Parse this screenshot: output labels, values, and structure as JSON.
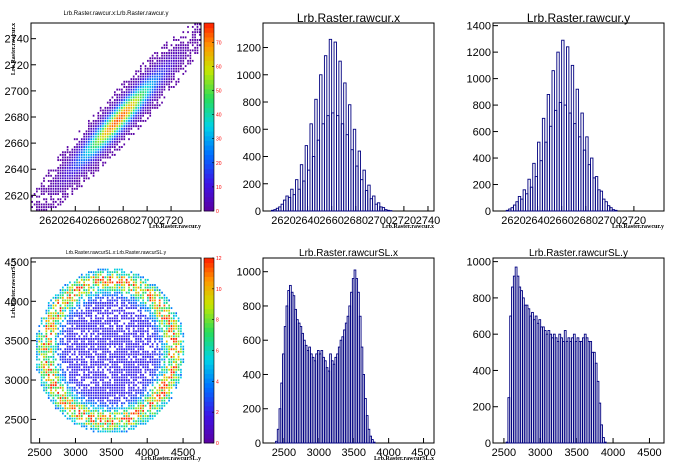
{
  "chart_data": [
    {
      "type": "heatmap",
      "title": "Lrb.Raster.rawcur.x:Lrb.Raster.rawcur.y",
      "xlabel": "Lrb.Raster.rawcur.y",
      "ylabel": "Lrb.Raster.rawcur.x",
      "xlim": [
        2603,
        2745
      ],
      "ylim": [
        2608,
        2752
      ],
      "xticks": [
        2620,
        2640,
        2660,
        2680,
        2700,
        2720
      ],
      "yticks": [
        2620,
        2640,
        2660,
        2680,
        2700,
        2720,
        2740
      ],
      "zlim": [
        0,
        78
      ],
      "zticks": [
        0,
        10,
        20,
        30,
        40,
        50,
        60,
        70
      ],
      "distribution": {
        "shape": "ellipse",
        "cx": 2676,
        "cy": 2678,
        "sx": 21,
        "sy": 21,
        "rho": 0.95,
        "peak": 75
      }
    },
    {
      "type": "bar",
      "title": "Lrb.Raster.rawcur.x",
      "xlabel": "Lrb.Raster.rawcur.x",
      "xlim": [
        2603,
        2745
      ],
      "ylim": [
        0,
        1380
      ],
      "xticks": [
        2620,
        2640,
        2660,
        2680,
        2700,
        2720,
        2740
      ],
      "yticks": [
        0,
        200,
        400,
        600,
        800,
        1000,
        1200
      ],
      "yticklabels": [
        "0",
        "200",
        "400",
        "600",
        "800",
        "1000",
        "1200"
      ],
      "bins": {
        "start": 2610,
        "width": 2
      },
      "values": [
        5,
        10,
        20,
        30,
        50,
        80,
        110,
        100,
        160,
        120,
        230,
        160,
        340,
        220,
        480,
        300,
        640,
        400,
        820,
        520,
        1000,
        640,
        1140,
        700,
        1260,
        720,
        1240,
        700,
        1100,
        640,
        940,
        560,
        780,
        450,
        600,
        330,
        440,
        230,
        300,
        150,
        190,
        90,
        110,
        50,
        60,
        30,
        25,
        10,
        5,
        3
      ]
    },
    {
      "type": "bar",
      "title": "Lrb.Raster.rawcur.y",
      "xlabel": "Lrb.Raster.rawcur.y",
      "xlim": [
        2603,
        2745
      ],
      "ylim": [
        0,
        1420
      ],
      "xticks": [
        2620,
        2640,
        2660,
        2680,
        2700,
        2720
      ],
      "yticks": [
        0,
        200,
        400,
        600,
        800,
        1000,
        1200,
        1400
      ],
      "yticklabels": [
        "0",
        "200",
        "400",
        "600",
        "800",
        "1000",
        "1200",
        "1400"
      ],
      "bins": {
        "start": 2614,
        "width": 2
      },
      "values": [
        5,
        15,
        25,
        45,
        70,
        110,
        90,
        160,
        130,
        240,
        180,
        360,
        260,
        520,
        380,
        700,
        520,
        880,
        640,
        1060,
        760,
        1200,
        820,
        1290,
        800,
        1240,
        740,
        1100,
        660,
        920,
        560,
        740,
        460,
        560,
        350,
        400,
        250,
        260,
        160,
        150,
        90,
        70,
        40,
        25,
        10,
        5
      ]
    },
    {
      "type": "heatmap",
      "title": "Lrb.Raster.rawcurSL.x:Lrb.Raster.rawcurSL.y",
      "xlabel": "Lrb.Raster.rawcurSL.y",
      "ylabel": "Lrb.Raster.rawcurSL.x",
      "xlim": [
        2380,
        4750
      ],
      "ylim": [
        2200,
        4550
      ],
      "xticks": [
        2500,
        3000,
        3500,
        4000,
        4500
      ],
      "yticks": [
        2500,
        3000,
        3500,
        4000,
        4500
      ],
      "yticklabels": [
        "2500",
        "3000",
        "3500",
        "4000",
        "4500"
      ],
      "zlim": [
        0,
        12
      ],
      "zticks": [
        0,
        2,
        4,
        6,
        8,
        10,
        12
      ],
      "distribution": {
        "shape": "disk",
        "cx": 3480,
        "cy": 3370,
        "r": 1050,
        "edge_peak": 10,
        "inner": 2
      }
    },
    {
      "type": "bar",
      "title": "Lrb.Raster.rawcurSL.x",
      "xlabel": "Lrb.Raster.rawcurSL.x",
      "xlim": [
        2200,
        4650
      ],
      "ylim": [
        0,
        1080
      ],
      "xticks": [
        2500,
        3000,
        3500,
        4000,
        4500
      ],
      "yticks": [
        0,
        200,
        400,
        600,
        800,
        1000
      ],
      "bins": {
        "start": 2380,
        "width": 25
      },
      "values": [
        10,
        80,
        200,
        350,
        520,
        680,
        800,
        890,
        920,
        880,
        860,
        780,
        720,
        700,
        680,
        640,
        600,
        570,
        540,
        560,
        520,
        500,
        480,
        520,
        540,
        520,
        540,
        500,
        480,
        440,
        420,
        520,
        480,
        460,
        500,
        520,
        560,
        600,
        620,
        660,
        700,
        740,
        800,
        880,
        960,
        1010,
        960,
        880,
        740,
        560,
        400,
        260,
        160,
        80,
        40,
        20,
        5
      ]
    },
    {
      "type": "bar",
      "title": "Lrb.Raster.rawcurSL.y",
      "xlabel": "",
      "xlim": [
        2350,
        4700
      ],
      "ylim": [
        0,
        1020
      ],
      "xticks": [
        2500,
        3000,
        3500,
        4000,
        4500
      ],
      "yticks": [
        0,
        200,
        400,
        600,
        800,
        1000
      ],
      "bins": {
        "start": 2530,
        "width": 25
      },
      "values": [
        5,
        250,
        700,
        860,
        920,
        970,
        920,
        860,
        840,
        800,
        760,
        760,
        740,
        700,
        720,
        680,
        700,
        660,
        680,
        640,
        640,
        620,
        600,
        620,
        600,
        580,
        600,
        580,
        560,
        600,
        580,
        560,
        620,
        560,
        580,
        560,
        580,
        600,
        560,
        580,
        560,
        560,
        580,
        600,
        580,
        560,
        560,
        500,
        500,
        440,
        340,
        220,
        100,
        30,
        5
      ]
    }
  ]
}
